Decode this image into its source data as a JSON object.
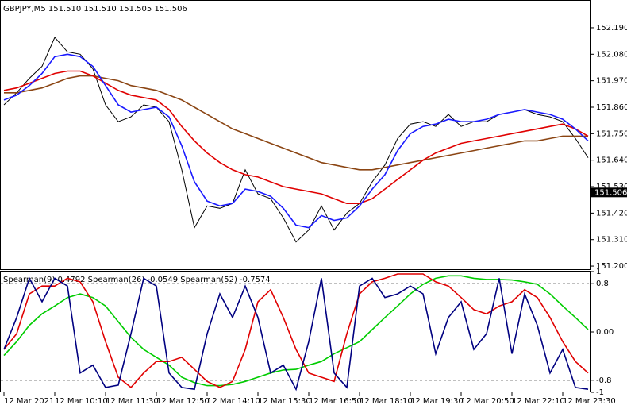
{
  "chart_data": [
    {
      "type": "line",
      "title": "GBPJPY,M5  151.510 151.510 151.505 151.506",
      "ylim": [
        151.187,
        152.302
      ],
      "yticks": [
        {
          "value": 151.2,
          "label": "151.200"
        },
        {
          "value": 151.31,
          "label": "151.310"
        },
        {
          "value": 151.42,
          "label": "151.420"
        },
        {
          "value": 151.53,
          "label": "151.530"
        },
        {
          "value": 151.64,
          "label": "151.640"
        },
        {
          "value": 151.75,
          "label": "151.750"
        },
        {
          "value": 151.86,
          "label": "151.860"
        },
        {
          "value": 151.97,
          "label": "151.970"
        },
        {
          "value": 152.08,
          "label": "152.080"
        },
        {
          "value": 152.19,
          "label": "152.190"
        }
      ],
      "last_price": 151.506,
      "series": [
        {
          "color": "#000000",
          "values": [
            151.87,
            151.92,
            151.98,
            152.03,
            152.15,
            152.09,
            152.08,
            152.02,
            151.87,
            151.8,
            151.82,
            151.87,
            151.86,
            151.8,
            151.6,
            151.36,
            151.45,
            151.44,
            151.46,
            151.6,
            151.5,
            151.48,
            151.4,
            151.3,
            151.35,
            151.45,
            151.35,
            151.42,
            151.46,
            151.55,
            151.62,
            151.73,
            151.79,
            151.8,
            151.78,
            151.83,
            151.78,
            151.8,
            151.8,
            151.83,
            151.84,
            151.85,
            151.83,
            151.82,
            151.8,
            151.73,
            151.65
          ]
        },
        {
          "color": "#8b4513",
          "values": [
            151.92,
            151.92,
            151.93,
            151.94,
            151.96,
            151.98,
            151.99,
            151.99,
            151.98,
            151.97,
            151.95,
            151.94,
            151.93,
            151.91,
            151.89,
            151.86,
            151.83,
            151.8,
            151.77,
            151.75,
            151.73,
            151.71,
            151.69,
            151.67,
            151.65,
            151.63,
            151.62,
            151.61,
            151.6,
            151.6,
            151.61,
            151.62,
            151.63,
            151.64,
            151.65,
            151.66,
            151.67,
            151.68,
            151.69,
            151.7,
            151.71,
            151.72,
            151.72,
            151.73,
            151.74,
            151.74,
            151.74
          ]
        },
        {
          "color": "#e00000",
          "values": [
            151.93,
            151.94,
            151.96,
            151.98,
            152.0,
            152.01,
            152.01,
            151.99,
            151.96,
            151.93,
            151.91,
            151.9,
            151.89,
            151.85,
            151.78,
            151.72,
            151.67,
            151.63,
            151.6,
            151.58,
            151.57,
            151.55,
            151.53,
            151.52,
            151.51,
            151.5,
            151.48,
            151.46,
            151.46,
            151.48,
            151.52,
            151.56,
            151.6,
            151.64,
            151.67,
            151.69,
            151.71,
            151.72,
            151.73,
            151.74,
            151.75,
            151.76,
            151.77,
            151.78,
            151.79,
            151.77,
            151.74
          ]
        },
        {
          "color": "#1a1aff",
          "values": [
            151.89,
            151.91,
            151.95,
            152.0,
            152.07,
            152.08,
            152.07,
            152.03,
            151.95,
            151.87,
            151.84,
            151.85,
            151.86,
            151.82,
            151.7,
            151.55,
            151.47,
            151.45,
            151.46,
            151.52,
            151.51,
            151.49,
            151.44,
            151.37,
            151.36,
            151.41,
            151.39,
            151.4,
            151.45,
            151.52,
            151.58,
            151.68,
            151.75,
            151.78,
            151.79,
            151.81,
            151.8,
            151.8,
            151.81,
            151.83,
            151.84,
            151.85,
            151.84,
            151.83,
            151.81,
            151.77,
            151.72
          ]
        }
      ]
    },
    {
      "type": "line",
      "title": "Spearman(9) 0.4792  Spearman(26) -0.0549  Spearman(52) -0.7574",
      "ylim": [
        -1,
        1
      ],
      "yticks": [
        1,
        0.8,
        {
          "value": 0,
          "label": "0.00"
        },
        -0.8,
        -1
      ],
      "levels": [
        0.8,
        -0.8
      ],
      "categories": [
        "12 Mar 2021",
        null,
        null,
        null,
        "12 Mar 10:10",
        null,
        null,
        null,
        "12 Mar 11:30",
        null,
        null,
        null,
        "12 Mar 12:50",
        null,
        null,
        null,
        "12 Mar 14:10",
        null,
        null,
        null,
        "12 Mar 15:30",
        null,
        null,
        null,
        "12 Mar 16:50",
        null,
        null,
        null,
        "12 Mar 18:10",
        null,
        null,
        null,
        "12 Mar 19:30",
        null,
        null,
        null,
        "12 Mar 20:50",
        null,
        null,
        null,
        "12 Mar 22:10",
        null,
        null,
        null,
        "12 Mar 23:30",
        null,
        null
      ],
      "series": [
        {
          "color": "#00cc00",
          "values": [
            -0.39,
            -0.16,
            0.11,
            0.3,
            0.43,
            0.57,
            0.63,
            0.57,
            0.43,
            0.17,
            -0.09,
            -0.29,
            -0.42,
            -0.55,
            -0.75,
            -0.84,
            -0.89,
            -0.89,
            -0.87,
            -0.82,
            -0.75,
            -0.68,
            -0.63,
            -0.62,
            -0.55,
            -0.49,
            -0.36,
            -0.26,
            -0.16,
            0.04,
            0.24,
            0.43,
            0.63,
            0.79,
            0.89,
            0.93,
            0.93,
            0.89,
            0.87,
            0.87,
            0.86,
            0.83,
            0.79,
            0.63,
            0.43,
            0.24,
            0.04
          ]
        },
        {
          "color": "#e00000",
          "values": [
            -0.29,
            -0.03,
            0.63,
            0.76,
            0.76,
            0.89,
            0.83,
            0.5,
            -0.16,
            -0.75,
            -0.92,
            -0.68,
            -0.49,
            -0.49,
            -0.42,
            -0.62,
            -0.82,
            -0.92,
            -0.82,
            -0.29,
            0.5,
            0.7,
            0.24,
            -0.29,
            -0.68,
            -0.75,
            -0.82,
            -0.03,
            0.63,
            0.83,
            0.89,
            0.96,
            0.96,
            0.96,
            0.83,
            0.76,
            0.57,
            0.37,
            0.3,
            0.43,
            0.5,
            0.7,
            0.57,
            0.24,
            -0.16,
            -0.49,
            -0.68
          ]
        },
        {
          "color": "#000080",
          "values": [
            -0.29,
            0.24,
            0.89,
            0.5,
            0.89,
            0.76,
            -0.68,
            -0.55,
            -0.92,
            -0.88,
            -0.03,
            0.89,
            0.76,
            -0.68,
            -0.92,
            -0.95,
            -0.03,
            0.63,
            0.24,
            0.76,
            0.24,
            -0.68,
            -0.55,
            -0.95,
            -0.16,
            0.89,
            -0.68,
            -0.92,
            0.76,
            0.89,
            0.57,
            0.63,
            0.76,
            0.63,
            -0.36,
            0.24,
            0.5,
            -0.29,
            -0.03,
            0.89,
            -0.36,
            0.63,
            0.11,
            -0.68,
            -0.29,
            -0.92,
            -0.95
          ]
        }
      ]
    }
  ]
}
